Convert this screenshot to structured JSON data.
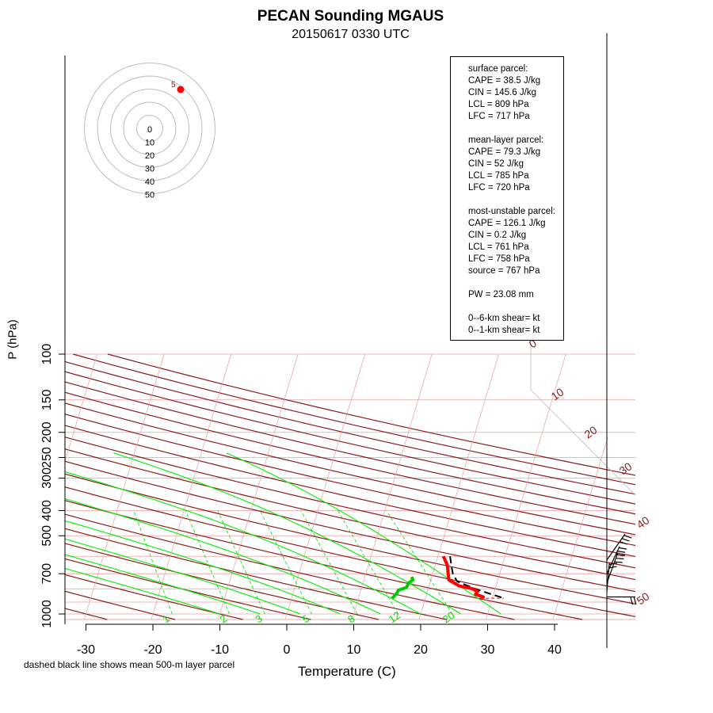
{
  "title": "PECAN Sounding MGAUS",
  "subtitle": "20150617 0330 UTC",
  "footnote": "dashed black line shows mean 500-m layer parcel",
  "stats": {
    "surface_header": "surface parcel:",
    "surface_cape": "CAPE = 38.5 J/kg",
    "surface_cin": "CIN = 145.6 J/kg",
    "surface_lcl": "LCL = 809 hPa",
    "surface_lfc": "LFC = 717 hPa",
    "ml_header": "mean-layer parcel:",
    "ml_cape": "CAPE = 79.3 J/kg",
    "ml_cin": "CIN = 52 J/kg",
    "ml_lcl": "LCL = 785 hPa",
    "ml_lfc": "LFC = 720 hPa",
    "mu_header": "most-unstable parcel:",
    "mu_cape": "CAPE = 126.1 J/kg",
    "mu_cin": "CIN = 0.2 J/kg",
    "mu_lcl": "LCL = 761 hPa",
    "mu_lfc": "LFC = 758 hPa",
    "mu_source": "source = 767 hPa",
    "pw": "PW =  23.08 mm",
    "shear06": "0--6-km shear=  kt",
    "shear01": "0--1-km shear=  kt"
  },
  "colors": {
    "dry_adiabat": "#8b1a1a",
    "isobar": "#e6a0a0",
    "mixing_ratio": "#00dd00",
    "moist_adiabat": "#00ee00",
    "temperature": "#ff0000",
    "dewpoint": "#00cc00",
    "parcel": "#000000"
  },
  "chart_data": {
    "type": "skew-t",
    "xlabel": "Temperature (C)",
    "ylabel": "P (hPa)",
    "x_ticks": [
      -30,
      -20,
      -10,
      0,
      10,
      20,
      30,
      40
    ],
    "y_ticks": [
      100,
      150,
      200,
      250,
      300,
      400,
      500,
      700,
      1000
    ],
    "isotherm_labels": [
      0,
      10,
      20,
      30,
      40,
      50
    ],
    "mixing_ratio_labels": [
      1,
      2,
      3,
      5,
      8,
      12,
      20
    ],
    "hodograph_ring_labels": [
      0,
      10,
      20,
      30,
      40,
      50
    ],
    "hodograph_point_label": "5",
    "temperature_profile": [
      {
        "p": 600,
        "t": 20.8
      },
      {
        "p": 650,
        "t": 21.8
      },
      {
        "p": 700,
        "t": 22.3
      },
      {
        "p": 740,
        "t": 22.7
      },
      {
        "p": 780,
        "t": 24.5
      },
      {
        "p": 800,
        "t": 26.6
      },
      {
        "p": 820,
        "t": 27.5
      },
      {
        "p": 840,
        "t": 27.3
      },
      {
        "p": 860,
        "t": 28.6
      },
      {
        "p": 870,
        "t": 28.2
      }
    ],
    "dewpoint_profile": [
      {
        "p": 720,
        "t": 17.0
      },
      {
        "p": 740,
        "t": 17.3
      },
      {
        "p": 760,
        "t": 16.8
      },
      {
        "p": 790,
        "t": 16.7
      },
      {
        "p": 810,
        "t": 15.6
      },
      {
        "p": 830,
        "t": 15.5
      },
      {
        "p": 850,
        "t": 15.3
      },
      {
        "p": 870,
        "t": 15.0
      }
    ],
    "parcel_profile": [
      {
        "p": 600,
        "t": 21.8
      },
      {
        "p": 650,
        "t": 22.4
      },
      {
        "p": 700,
        "t": 23.0
      },
      {
        "p": 750,
        "t": 24.0
      },
      {
        "p": 800,
        "t": 27.0
      },
      {
        "p": 840,
        "t": 29.7
      },
      {
        "p": 870,
        "t": 31.8
      }
    ]
  }
}
